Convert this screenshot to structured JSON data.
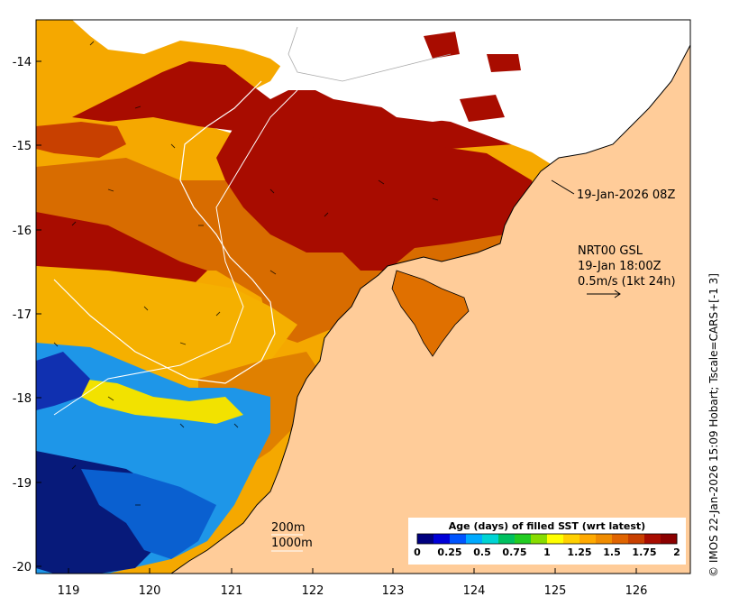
{
  "map": {
    "region": "Kimberley coast, Western Australia",
    "lon_range": [
      118.6,
      126.7
    ],
    "lat_range": [
      -20.1,
      -13.5
    ]
  },
  "axes": {
    "x_ticks": [
      "119",
      "120",
      "121",
      "122",
      "123",
      "124",
      "125",
      "126"
    ],
    "x_values": [
      119,
      120,
      121,
      122,
      123,
      124,
      125,
      126
    ],
    "y_ticks": [
      "-14",
      "-15",
      "-16",
      "-17",
      "-18",
      "-19",
      "-20"
    ],
    "y_values": [
      -14,
      -15,
      -16,
      -17,
      -18,
      -19,
      -20
    ]
  },
  "annotations": {
    "timestamp_label": "19-Jan-2026 08Z",
    "current_model": "NRT00 GSL",
    "current_time": "19-Jan 18:00Z",
    "current_scale": "0.5m/s (1kt 24h)",
    "isobath_200": "200m",
    "isobath_1000": "1000m"
  },
  "colorbar": {
    "title": "Age (days) of filled SST (wrt latest)",
    "tick_labels": [
      "0",
      "0.25",
      "0.5",
      "0.75",
      "1",
      "1.25",
      "1.5",
      "1.75",
      "2"
    ],
    "colors": [
      "#00007f",
      "#0000d8",
      "#0055ff",
      "#00aaff",
      "#00d4d4",
      "#00c060",
      "#22cc22",
      "#88dd00",
      "#ffff00",
      "#ffd000",
      "#ffaa00",
      "#f08c00",
      "#e06400",
      "#c84000",
      "#a80c00",
      "#8b0000"
    ]
  },
  "credit": "© IMOS 22-Jan-2026 15:09 Hobart; Tscale=CARS+[-1 3]",
  "colors": {
    "land": "#ffcc99",
    "no_data": "#ffffff",
    "age_2_days": "#a30000",
    "age_1_5_days": "#f0a000",
    "age_1_75_days": "#d86800",
    "age_0_5_days": "#0b7fd8",
    "age_0_days": "#05149e"
  }
}
